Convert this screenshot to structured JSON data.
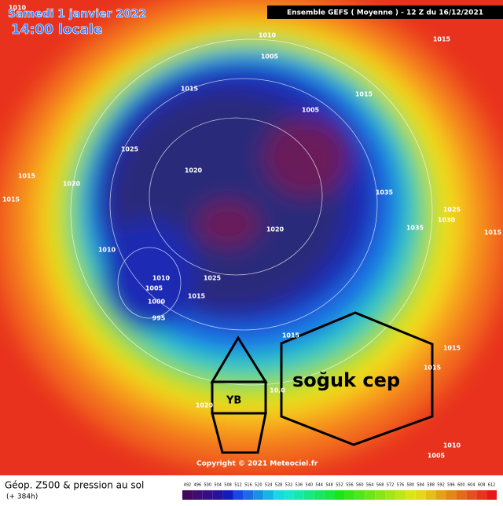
{
  "header": {
    "date": "Samedi 1 janvier 2022",
    "time": "14:00 locale",
    "run": "Ensemble GEFS  ( Moyenne )  -  12 Z du 16/12/2021"
  },
  "annotations": {
    "region": "soğuk cep",
    "box": "YB"
  },
  "pressure_labels": [
    "1010",
    "1010",
    "1015",
    "1005",
    "1015",
    "1015",
    "1005",
    "1025",
    "1020",
    "1015",
    "1020",
    "1015",
    "1035",
    "1025",
    "1030",
    "1035",
    "1015",
    "1020",
    "1010",
    "1010",
    "1025",
    "1005",
    "1015",
    "1000",
    "995",
    "1015",
    "1015",
    "1015",
    "1020",
    "1010",
    "1005",
    "10,0"
  ],
  "copyright": "Copyright © 2021 Meteociel.fr",
  "footer": {
    "title": "Géop. Z500 & pression au sol",
    "lead": "(+ 384h)"
  },
  "scale": [
    492,
    496,
    500,
    504,
    508,
    512,
    516,
    520,
    524,
    528,
    532,
    536,
    540,
    544,
    548,
    552,
    556,
    560,
    564,
    568,
    572,
    576,
    580,
    584,
    588,
    592,
    596,
    600,
    604,
    608,
    612
  ]
}
